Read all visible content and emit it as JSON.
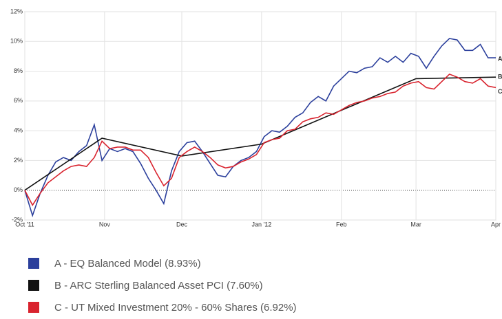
{
  "chart_data": {
    "type": "line",
    "x": [
      0,
      3,
      6,
      9,
      12,
      15,
      18,
      21,
      24,
      27,
      30,
      33,
      36,
      39,
      42,
      45,
      48,
      51,
      54,
      57,
      60,
      63,
      66,
      69,
      72,
      75,
      78,
      81,
      84,
      87,
      90,
      93,
      96,
      99,
      102,
      105,
      108,
      111,
      114,
      117,
      120,
      123,
      126,
      129,
      132,
      135,
      138,
      141,
      144,
      147,
      150,
      153,
      156,
      159,
      162,
      165,
      168,
      171,
      174,
      177,
      180,
      183
    ],
    "xlim": [
      0,
      183
    ],
    "xticks": [
      {
        "value": 0,
        "label": "Oct '11"
      },
      {
        "value": 31,
        "label": "Nov"
      },
      {
        "value": 61,
        "label": "Dec"
      },
      {
        "value": 92,
        "label": "Jan '12"
      },
      {
        "value": 123,
        "label": "Feb"
      },
      {
        "value": 152,
        "label": "Mar"
      },
      {
        "value": 183,
        "label": "Apr"
      }
    ],
    "ylim": [
      -2,
      12
    ],
    "yticks": [
      {
        "value": -2,
        "label": "-2%"
      },
      {
        "value": 0,
        "label": "0%"
      },
      {
        "value": 2,
        "label": "2%"
      },
      {
        "value": 4,
        "label": "4%"
      },
      {
        "value": 6,
        "label": "6%"
      },
      {
        "value": 8,
        "label": "8%"
      },
      {
        "value": 10,
        "label": "10%"
      },
      {
        "value": 12,
        "label": "12%"
      }
    ],
    "grid": true,
    "series": [
      {
        "name": "A - EQ Balanced Model (8.93%)",
        "tag": "A",
        "color": "#2b3f9c",
        "values": [
          0,
          -1.7,
          -0.2,
          1.0,
          1.9,
          2.2,
          2.0,
          2.6,
          3.0,
          4.4,
          2.0,
          2.8,
          2.6,
          2.8,
          2.6,
          1.8,
          0.8,
          0.0,
          -0.9,
          1.3,
          2.6,
          3.2,
          3.3,
          2.6,
          1.8,
          1.0,
          0.9,
          1.6,
          2.0,
          2.2,
          2.6,
          3.6,
          4.0,
          3.9,
          4.3,
          4.9,
          5.2,
          5.9,
          6.3,
          6.0,
          7.0,
          7.5,
          8.0,
          7.9,
          8.2,
          8.3,
          8.9,
          8.6,
          9.0,
          8.6,
          9.2,
          9.0,
          8.2,
          9.0,
          9.7,
          10.2,
          10.1,
          9.4,
          9.4,
          9.8,
          8.9,
          8.9
        ]
      },
      {
        "name": "B - ARC Sterling Balanced Asset PCI (7.60%)",
        "tag": "B",
        "color": "#111111",
        "x": [
          0,
          30,
          61,
          92,
          152,
          183
        ],
        "values": [
          0,
          3.5,
          2.3,
          3.1,
          7.5,
          7.6
        ]
      },
      {
        "name": "C - UT Mixed Investment 20% - 60% Shares (6.92%)",
        "tag": "C",
        "color": "#d9232e",
        "values": [
          0,
          -1.0,
          -0.2,
          0.5,
          0.9,
          1.3,
          1.6,
          1.7,
          1.6,
          2.2,
          3.3,
          2.8,
          2.9,
          2.9,
          2.7,
          2.7,
          2.2,
          1.2,
          0.3,
          0.8,
          2.2,
          2.6,
          2.9,
          2.6,
          2.2,
          1.7,
          1.5,
          1.6,
          1.9,
          2.1,
          2.4,
          3.2,
          3.4,
          3.5,
          4.0,
          4.1,
          4.6,
          4.8,
          4.9,
          5.2,
          5.1,
          5.4,
          5.7,
          5.9,
          6.0,
          6.2,
          6.3,
          6.5,
          6.6,
          7.0,
          7.2,
          7.3,
          6.9,
          6.8,
          7.3,
          7.8,
          7.6,
          7.3,
          7.2,
          7.5,
          7.0,
          6.9
        ]
      }
    ]
  }
}
